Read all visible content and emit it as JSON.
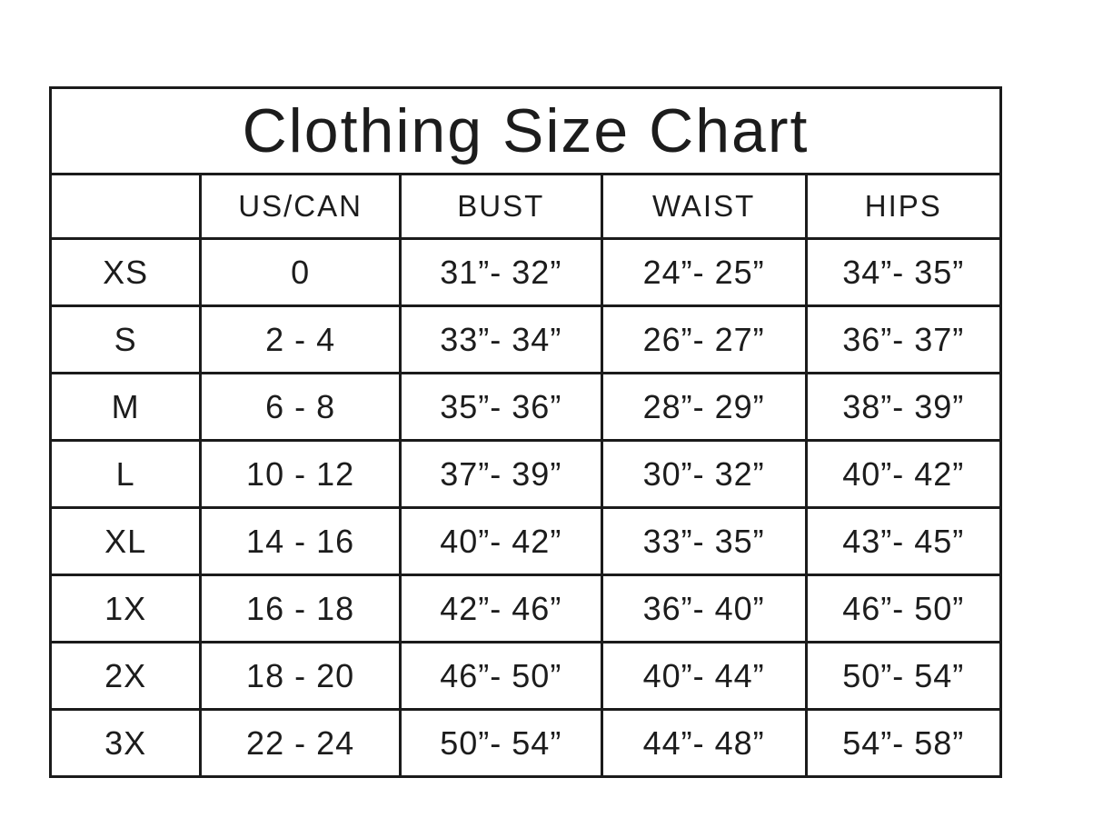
{
  "page": {
    "background_color": "#ffffff",
    "border_color": "#1b1b1b",
    "text_color": "#1c1c1c"
  },
  "chart_data": {
    "type": "table",
    "title": "Clothing Size Chart",
    "columns": [
      "",
      "US/CAN",
      "BUST",
      "WAIST",
      "HIPS"
    ],
    "rows": [
      [
        "XS",
        "0",
        "31”- 32”",
        "24”- 25”",
        "34”- 35”"
      ],
      [
        "S",
        "2 - 4",
        "33”- 34”",
        "26”- 27”",
        "36”- 37”"
      ],
      [
        "M",
        "6 - 8",
        "35”- 36”",
        "28”- 29”",
        "38”- 39”"
      ],
      [
        "L",
        "10 - 12",
        "37”- 39”",
        "30”- 32”",
        "40”- 42”"
      ],
      [
        "XL",
        "14 - 16",
        "40”- 42”",
        "33”- 35”",
        "43”- 45”"
      ],
      [
        "1X",
        "16 - 18",
        "42”- 46”",
        "36”- 40”",
        "46”- 50”"
      ],
      [
        "2X",
        "18 - 20",
        "46”- 50”",
        "40”- 44”",
        "50”- 54”"
      ],
      [
        "3X",
        "22 - 24",
        "50”- 54”",
        "44”- 48”",
        "54”- 58”"
      ]
    ],
    "layout": {
      "grid": "on",
      "legend": "none",
      "title_row": "spans all 5 columns",
      "first_header_cell": "empty"
    }
  }
}
